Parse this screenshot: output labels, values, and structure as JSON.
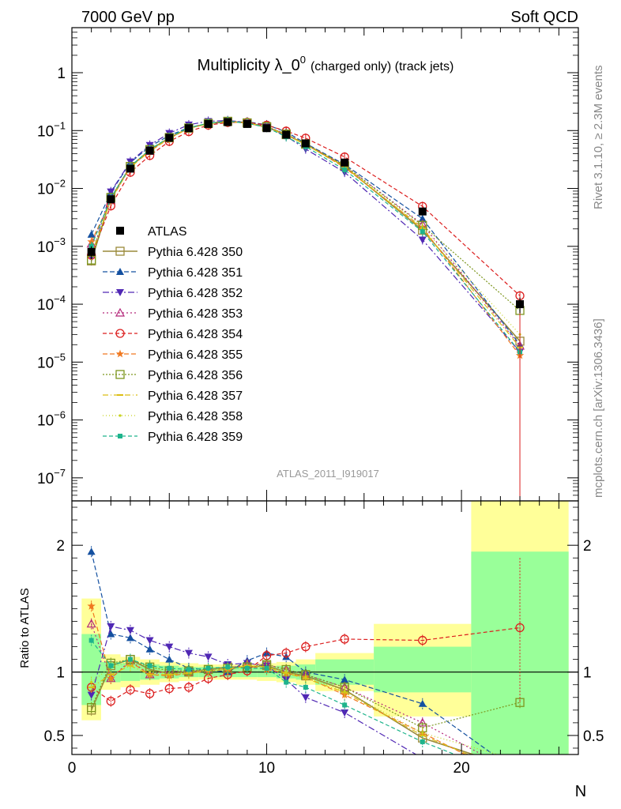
{
  "header": {
    "left": "7000 GeV pp",
    "right": "Soft QCD"
  },
  "side": {
    "top": "Rivet 3.1.10, ≥ 2.3M events",
    "bottom": "mcplots.cern.ch [arXiv:1306.3436]"
  },
  "chart_data": [
    {
      "type": "line",
      "title_main": "Multiplicity λ_0",
      "title_sup": "0",
      "title_tail": "(charged only) (track jets)",
      "watermark": "ATLAS_2011_I919017",
      "yscale": "log",
      "xlim": [
        0,
        26
      ],
      "ylim": [
        4e-08,
        6
      ],
      "yticks": [
        {
          "v": 1,
          "base": "1",
          "exp": ""
        },
        {
          "v": 0.1,
          "base": "10",
          "exp": "−1"
        },
        {
          "v": 0.01,
          "base": "10",
          "exp": "−2"
        },
        {
          "v": 0.001,
          "base": "10",
          "exp": "−3"
        },
        {
          "v": 0.0001,
          "base": "10",
          "exp": "−4"
        },
        {
          "v": 1e-05,
          "base": "10",
          "exp": "−5"
        },
        {
          "v": 1e-06,
          "base": "10",
          "exp": "−6"
        },
        {
          "v": 1e-07,
          "base": "10",
          "exp": "−7"
        }
      ],
      "x": [
        1,
        2,
        3,
        4,
        5,
        6,
        7,
        8,
        9,
        10,
        11,
        12,
        14,
        18,
        23
      ],
      "atlas": {
        "name": "ATLAS",
        "values": [
          0.0008,
          0.0065,
          0.022,
          0.045,
          0.075,
          0.11,
          0.13,
          0.14,
          0.13,
          0.11,
          0.085,
          0.06,
          0.028,
          0.004,
          0.0001
        ],
        "errors": [
          0.0002,
          0.0008,
          0.002,
          0.003,
          0.004,
          0.005,
          0.006,
          0.006,
          0.006,
          0.006,
          0.005,
          0.004,
          0.002,
          0.0004,
          3e-05
        ]
      },
      "legend_placement": "middle-left",
      "series": [
        {
          "name": "Pythia 6.428 350",
          "color": "#9a8a3a",
          "marker": "square-open",
          "dash": "",
          "values": [
            0.00056,
            0.0068,
            0.024,
            0.046,
            0.075,
            0.11,
            0.133,
            0.145,
            0.135,
            0.115,
            0.085,
            0.058,
            0.024,
            0.0019,
            2.3e-05
          ]
        },
        {
          "name": "Pythia 6.428 351",
          "color": "#1450a0",
          "marker": "triangle-up",
          "dash": "6,3",
          "values": [
            0.0016,
            0.0085,
            0.028,
            0.053,
            0.082,
            0.113,
            0.132,
            0.14,
            0.142,
            0.126,
            0.095,
            0.06,
            0.026,
            0.003,
            2e-05
          ]
        },
        {
          "name": "Pythia 6.428 352",
          "color": "#5028b4",
          "marker": "triangle-down",
          "dash": "8,3,2,3",
          "values": [
            0.00065,
            0.0088,
            0.029,
            0.056,
            0.09,
            0.126,
            0.145,
            0.149,
            0.139,
            0.116,
            0.08,
            0.048,
            0.019,
            0.0013,
            1.5e-05
          ]
        },
        {
          "name": "Pythia 6.428 353",
          "color": "#b4287a",
          "marker": "triangle-up-open",
          "dash": "2,3",
          "values": [
            0.0011,
            0.0062,
            0.024,
            0.044,
            0.076,
            0.11,
            0.133,
            0.144,
            0.138,
            0.117,
            0.087,
            0.059,
            0.025,
            0.0024,
            1.9e-05
          ]
        },
        {
          "name": "Pythia 6.428 354",
          "color": "#dc1e1e",
          "marker": "circle-open",
          "dash": "5,3",
          "values": [
            0.0007,
            0.005,
            0.019,
            0.037,
            0.065,
            0.096,
            0.124,
            0.138,
            0.139,
            0.124,
            0.098,
            0.074,
            0.035,
            0.0049,
            0.00014
          ]
        },
        {
          "name": "Pythia 6.428 355",
          "color": "#f07820",
          "marker": "star",
          "dash": "6,3",
          "values": [
            0.0012,
            0.0062,
            0.024,
            0.044,
            0.073,
            0.109,
            0.131,
            0.142,
            0.136,
            0.113,
            0.084,
            0.058,
            0.023,
            0.0021,
            1.3e-05
          ]
        },
        {
          "name": "Pythia 6.428 356",
          "color": "#7d961e",
          "marker": "square-open",
          "dash": "2,2",
          "values": [
            0.00058,
            0.007,
            0.024,
            0.047,
            0.076,
            0.111,
            0.133,
            0.144,
            0.136,
            0.117,
            0.087,
            0.059,
            0.025,
            0.0023,
            7.8e-05
          ]
        },
        {
          "name": "Pythia 6.428 357",
          "color": "#dcbe14",
          "marker": "dash-dot",
          "dash": "7,3,1,3",
          "values": [
            0.0007,
            0.0064,
            0.023,
            0.044,
            0.074,
            0.109,
            0.131,
            0.143,
            0.137,
            0.114,
            0.084,
            0.057,
            0.024,
            0.002,
            1.8e-05
          ]
        },
        {
          "name": "Pythia 6.428 358",
          "color": "#c8d21e",
          "marker": "dot",
          "dash": "1,3",
          "values": [
            0.00075,
            0.0068,
            0.024,
            0.045,
            0.075,
            0.11,
            0.132,
            0.143,
            0.137,
            0.115,
            0.085,
            0.058,
            0.024,
            0.0021,
            3e-05
          ]
        },
        {
          "name": "Pythia 6.428 359",
          "color": "#1eb48c",
          "marker": "square-filled",
          "dash": "5,3",
          "values": [
            0.001,
            0.0068,
            0.024,
            0.047,
            0.077,
            0.112,
            0.134,
            0.145,
            0.134,
            0.113,
            0.078,
            0.053,
            0.021,
            0.0018,
            1.5e-05
          ]
        }
      ]
    },
    {
      "type": "line",
      "ylabel": "Ratio to ATLAS",
      "xlabel": "N",
      "xlim": [
        0,
        26
      ],
      "ylim": [
        0.35,
        2.35
      ],
      "yticks": [
        0.5,
        1,
        2
      ],
      "xticks": [
        0,
        10,
        20
      ],
      "bands": [
        {
          "x0": 0.5,
          "x1": 1.5,
          "yellow": [
            0.62,
            1.58
          ],
          "green": [
            0.74,
            1.3
          ]
        },
        {
          "x0": 1.5,
          "x1": 2.5,
          "yellow": [
            0.86,
            1.14
          ],
          "green": [
            0.92,
            1.08
          ]
        },
        {
          "x0": 2.5,
          "x1": 3.5,
          "yellow": [
            0.88,
            1.12
          ],
          "green": [
            0.93,
            1.07
          ]
        },
        {
          "x0": 3.5,
          "x1": 4.5,
          "yellow": [
            0.9,
            1.1
          ],
          "green": [
            0.94,
            1.06
          ]
        },
        {
          "x0": 4.5,
          "x1": 5.5,
          "yellow": [
            0.92,
            1.08
          ],
          "green": [
            0.95,
            1.05
          ]
        },
        {
          "x0": 5.5,
          "x1": 6.5,
          "yellow": [
            0.93,
            1.07
          ],
          "green": [
            0.96,
            1.04
          ]
        },
        {
          "x0": 6.5,
          "x1": 7.5,
          "yellow": [
            0.94,
            1.06
          ],
          "green": [
            0.96,
            1.04
          ]
        },
        {
          "x0": 7.5,
          "x1": 8.5,
          "yellow": [
            0.94,
            1.06
          ],
          "green": [
            0.96,
            1.04
          ]
        },
        {
          "x0": 8.5,
          "x1": 9.5,
          "yellow": [
            0.94,
            1.06
          ],
          "green": [
            0.96,
            1.04
          ]
        },
        {
          "x0": 9.5,
          "x1": 10.5,
          "yellow": [
            0.93,
            1.07
          ],
          "green": [
            0.96,
            1.04
          ]
        },
        {
          "x0": 10.5,
          "x1": 11.5,
          "yellow": [
            0.92,
            1.08
          ],
          "green": [
            0.95,
            1.05
          ]
        },
        {
          "x0": 11.5,
          "x1": 12.5,
          "yellow": [
            0.9,
            1.1
          ],
          "green": [
            0.94,
            1.06
          ]
        },
        {
          "x0": 12.5,
          "x1": 15.5,
          "yellow": [
            0.85,
            1.15
          ],
          "green": [
            0.9,
            1.1
          ]
        },
        {
          "x0": 15.5,
          "x1": 20.5,
          "yellow": [
            0.65,
            1.38
          ],
          "green": [
            0.84,
            1.2
          ]
        },
        {
          "x0": 20.5,
          "x1": 25.5,
          "yellow": [
            0.35,
            2.35
          ],
          "green": [
            0.35,
            1.95
          ]
        }
      ],
      "series": [
        {
          "name": "Pythia 6.428 350",
          "values": [
            0.7,
            1.05,
            1.1,
            1.02,
            0.99,
            1.0,
            1.02,
            1.04,
            1.04,
            1.05,
            1.0,
            0.97,
            0.86,
            0.48,
            0.23
          ]
        },
        {
          "name": "Pythia 6.428 351",
          "values": [
            1.95,
            1.3,
            1.27,
            1.18,
            1.1,
            1.03,
            1.02,
            1.0,
            1.09,
            1.15,
            1.12,
            1.0,
            0.94,
            0.75,
            0.2
          ]
        },
        {
          "name": "Pythia 6.428 352",
          "values": [
            0.82,
            1.36,
            1.33,
            1.25,
            1.2,
            1.15,
            1.12,
            1.06,
            1.07,
            1.05,
            0.94,
            0.8,
            0.68,
            0.32,
            0.15
          ]
        },
        {
          "name": "Pythia 6.428 353",
          "values": [
            1.38,
            0.95,
            1.09,
            0.98,
            1.01,
            1.0,
            1.02,
            1.03,
            1.06,
            1.06,
            1.02,
            0.98,
            0.88,
            0.6,
            0.19
          ]
        },
        {
          "name": "Pythia 6.428 354",
          "values": [
            0.88,
            0.77,
            0.86,
            0.83,
            0.87,
            0.88,
            0.95,
            0.98,
            1.01,
            1.13,
            1.15,
            1.2,
            1.26,
            1.25,
            1.35
          ]
        },
        {
          "name": "Pythia 6.428 355",
          "values": [
            1.52,
            0.95,
            1.08,
            0.98,
            0.97,
            0.99,
            1.01,
            1.02,
            1.05,
            1.02,
            0.99,
            0.96,
            0.82,
            0.52,
            0.13
          ]
        },
        {
          "name": "Pythia 6.428 356",
          "values": [
            0.72,
            1.07,
            1.1,
            1.04,
            1.01,
            1.01,
            1.02,
            1.03,
            1.04,
            1.06,
            1.02,
            0.98,
            0.88,
            0.56,
            0.76
          ]
        },
        {
          "name": "Pythia 6.428 357",
          "values": [
            0.88,
            0.98,
            1.05,
            0.98,
            0.98,
            0.99,
            1.01,
            1.02,
            1.05,
            1.04,
            0.99,
            0.95,
            0.84,
            0.5,
            0.18
          ]
        },
        {
          "name": "Pythia 6.428 358",
          "values": [
            0.92,
            1.04,
            1.08,
            1.0,
            0.99,
            1.0,
            1.02,
            1.03,
            1.05,
            1.04,
            1.0,
            0.96,
            0.85,
            0.52,
            0.3
          ]
        },
        {
          "name": "Pythia 6.428 359",
          "values": [
            1.25,
            1.05,
            1.1,
            1.05,
            1.03,
            1.02,
            1.03,
            1.04,
            1.03,
            1.03,
            0.92,
            0.88,
            0.74,
            0.45,
            0.15
          ]
        }
      ]
    }
  ]
}
